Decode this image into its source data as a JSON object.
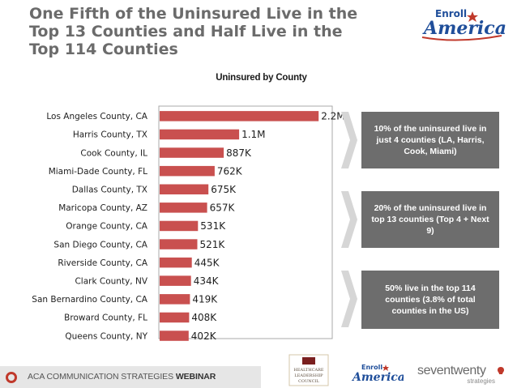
{
  "title": "One Fifth of the Uninsured Live in the Top 13 Counties and Half Live in the Top 114 Counties",
  "logo_text_line1": "Enroll",
  "logo_text_line2": "America",
  "chart_data": {
    "type": "bar",
    "orientation": "horizontal",
    "title": "Uninsured by County",
    "categories": [
      "Los Angeles County, CA",
      "Harris County, TX",
      "Cook County, IL",
      "Miami-Dade County, FL",
      "Dallas County, TX",
      "Maricopa County, AZ",
      "Orange County, CA",
      "San Diego County, CA",
      "Riverside County, CA",
      "Clark County, NV",
      "San Bernardino County, CA",
      "Broward County, FL",
      "Queens County, NY"
    ],
    "values": [
      2200000,
      1100000,
      887000,
      762000,
      675000,
      657000,
      531000,
      521000,
      445000,
      434000,
      419000,
      408000,
      402000
    ],
    "value_labels": [
      "2.2M",
      "1.1M",
      "887K",
      "762K",
      "675K",
      "657K",
      "531K",
      "521K",
      "445K",
      "434K",
      "419K",
      "408K",
      "402K"
    ],
    "xlim": [
      0,
      2400000
    ],
    "bar_color": "#c9504f",
    "grid": false
  },
  "callouts": [
    "10% of the uninsured live in just 4 counties (LA, Harris, Cook, Miami)",
    "20% of the uninsured live in top 13 counties (Top 4 + Next 9)",
    "50% live in the top 114 counties (3.8% of total counties in the US)"
  ],
  "colors": {
    "accent_red": "#c0392b",
    "callout_bg": "#6d6d6d",
    "logo_blue": "#1f4e9a"
  },
  "footer": {
    "text_plain": "ACA COMMUNICATION STRATEGIES ",
    "text_bold": "WEBINAR"
  },
  "footer_logos": {
    "hlc_line1": "HEALTHCARE",
    "hlc_line2": "LEADERSHIP",
    "hlc_line3": "COUNCIL",
    "sponsor_main": "seventwenty",
    "sponsor_sub": "strategies"
  }
}
